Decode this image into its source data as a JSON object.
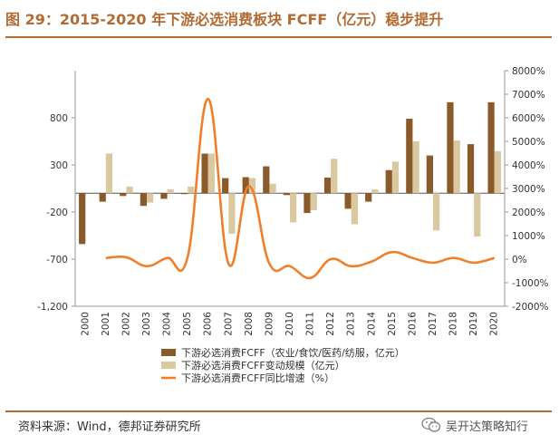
{
  "header": {
    "title": "图 29：2015-2020 年下游必选消费板块 FCFF（亿元）稳步提升"
  },
  "footer": {
    "source": "资料来源：Wind，德邦证券研究所",
    "wechat": "吴开达策略知行"
  },
  "chart_data": {
    "type": "bar",
    "title": "图 29：2015-2020 年下游必选消费板块 FCFF（亿元）稳步提升",
    "categories": [
      "2000",
      "2001",
      "2002",
      "2003",
      "2004",
      "2005",
      "2006",
      "2007",
      "2008",
      "2009",
      "2010",
      "2011",
      "2012",
      "2013",
      "2014",
      "2015",
      "2016",
      "2017",
      "2018",
      "2019",
      "2020"
    ],
    "y_left": {
      "range": [
        -1200,
        1300
      ],
      "ticks": [
        -1200,
        -700,
        -200,
        300,
        800
      ],
      "tick_labels": [
        "-1,200",
        "-700",
        "-200",
        "300",
        "800"
      ]
    },
    "y_right": {
      "range": [
        -2000,
        8000
      ],
      "ticks": [
        -2000,
        -1000,
        0,
        1000,
        2000,
        3000,
        4000,
        5000,
        6000,
        7000,
        8000
      ],
      "tick_labels": [
        "-2000%",
        "-1000%",
        "0%",
        "1000%",
        "2000%",
        "3000%",
        "4000%",
        "5000%",
        "6000%",
        "7000%",
        "8000%"
      ]
    },
    "series": [
      {
        "name": "下游必选消费FCFF（农业/食饮/医药/纺服，亿元）",
        "type": "bar",
        "axis": "left",
        "color": "#8b5a2b",
        "values": [
          -540,
          -90,
          -30,
          -135,
          -60,
          -10,
          420,
          160,
          170,
          285,
          -20,
          -210,
          165,
          -165,
          -90,
          245,
          790,
          400,
          965,
          520,
          965
        ]
      },
      {
        "name": "下游必选消费FCFF变动规模（亿元）",
        "type": "bar",
        "axis": "left",
        "color": "#d9c8a0",
        "values": [
          0,
          420,
          70,
          -100,
          40,
          70,
          420,
          -430,
          160,
          100,
          -310,
          -180,
          365,
          -330,
          40,
          335,
          550,
          -395,
          560,
          -460,
          445
        ]
      },
      {
        "name": "下游必选消费FCFF同比增速（%）",
        "type": "line",
        "axis": "right",
        "color": "#f07f2a",
        "values": [
          null,
          50,
          80,
          -300,
          50,
          100,
          6800,
          -200,
          3100,
          -200,
          -300,
          -800,
          0,
          -300,
          -100,
          300,
          50,
          -150,
          50,
          -150,
          50
        ]
      }
    ]
  }
}
